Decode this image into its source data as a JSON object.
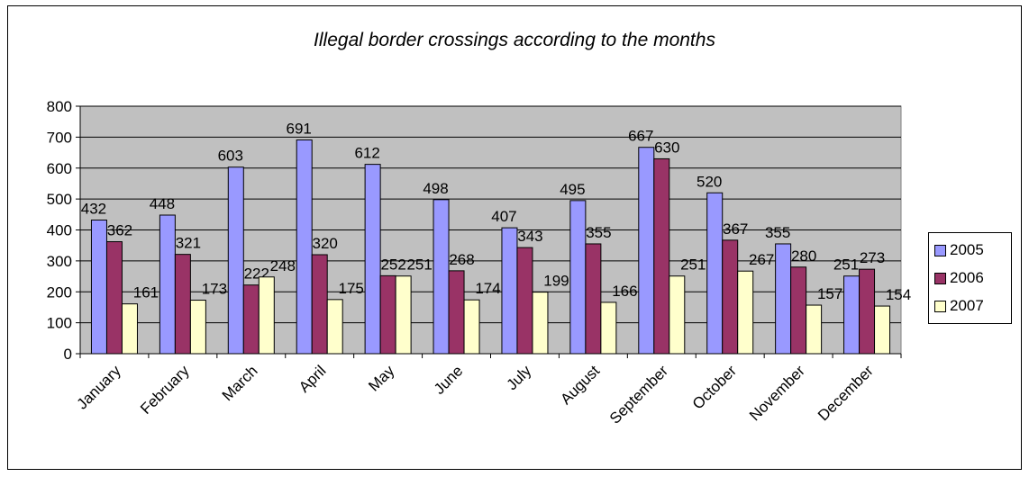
{
  "chart_data": {
    "type": "bar",
    "title": "Illegal border crossings according to the months",
    "categories": [
      "January",
      "February",
      "March",
      "April",
      "May",
      "June",
      "July",
      "August",
      "September",
      "October",
      "November",
      "December"
    ],
    "series": [
      {
        "name": "2005",
        "color": "#9999ff",
        "values": [
          432,
          448,
          603,
          691,
          612,
          498,
          407,
          495,
          667,
          520,
          355,
          251
        ]
      },
      {
        "name": "2006",
        "color": "#993366",
        "values": [
          362,
          321,
          222,
          320,
          252,
          268,
          343,
          355,
          630,
          367,
          280,
          273
        ]
      },
      {
        "name": "2007",
        "color": "#ffffcc",
        "values": [
          161,
          173,
          248,
          175,
          251,
          174,
          199,
          166,
          251,
          267,
          157,
          154
        ]
      }
    ],
    "ylim": [
      0,
      800
    ],
    "yticks": [
      0,
      100,
      200,
      300,
      400,
      500,
      600,
      700,
      800
    ],
    "grid": true,
    "plot_background": "#c0c0c0",
    "legend_position": "right"
  }
}
